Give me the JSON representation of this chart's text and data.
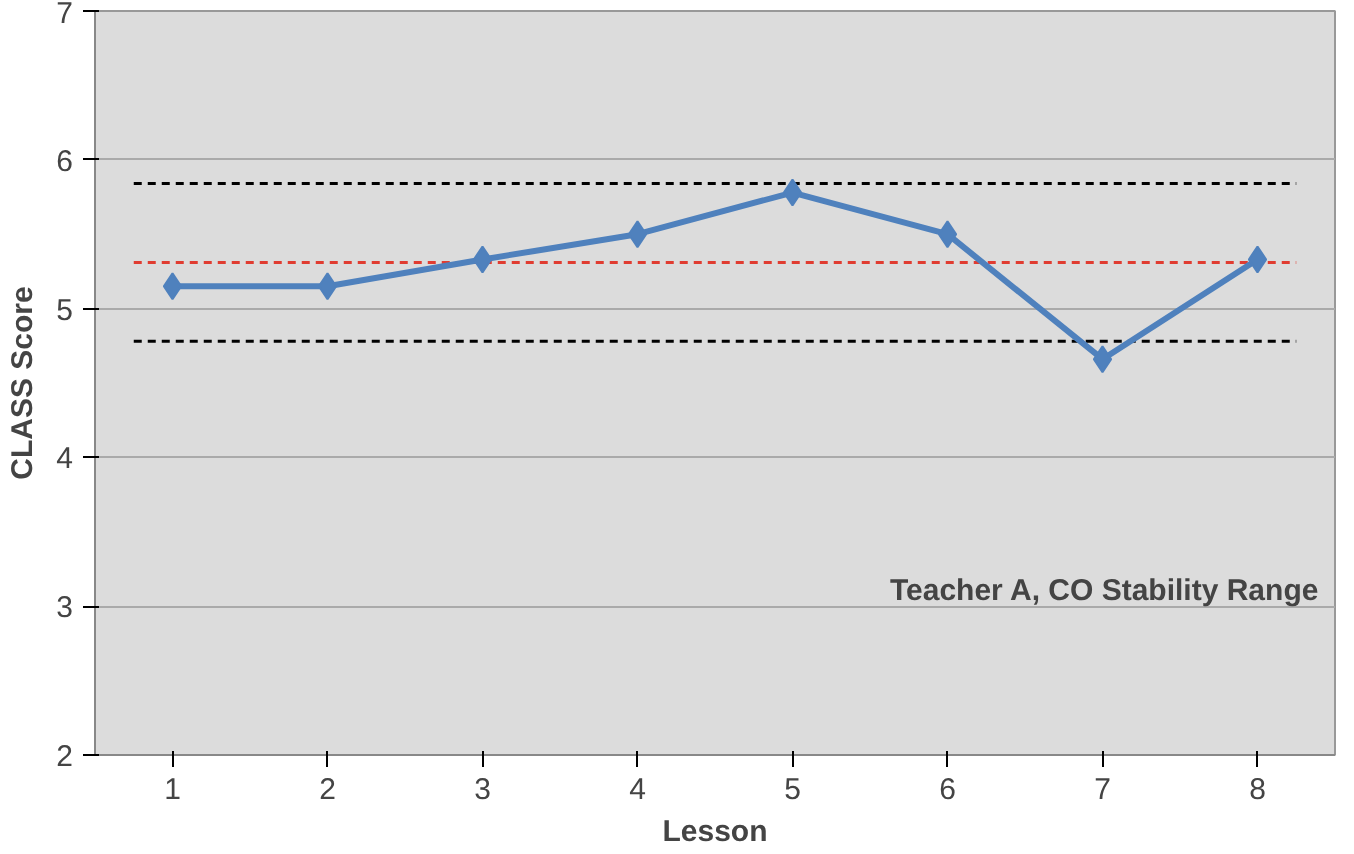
{
  "chart_data": {
    "type": "line",
    "xlabel": "Lesson",
    "ylabel": "CLASS Score",
    "categories": [
      "1",
      "2",
      "3",
      "4",
      "5",
      "6",
      "7",
      "8"
    ],
    "series": [
      {
        "color": "#4f81bd",
        "values": [
          5.15,
          5.15,
          5.33,
          5.5,
          5.78,
          5.5,
          4.66,
          5.33
        ]
      }
    ],
    "ylim": [
      2,
      7
    ],
    "yticks": [
      2,
      3,
      4,
      5,
      6,
      7
    ],
    "grid": "y",
    "marker": "diamond",
    "line_style": "solid",
    "ref_lines": [
      {
        "axis": "y",
        "value": 5.84,
        "color": "#000000",
        "line_style": "dashed"
      },
      {
        "axis": "y",
        "value": 5.31,
        "color": "#e03c31",
        "line_style": "dashed"
      },
      {
        "axis": "y",
        "value": 4.78,
        "color": "#000000",
        "line_style": "dashed"
      }
    ],
    "annotations": [
      "Teacher A, CO Stability Range"
    ]
  }
}
